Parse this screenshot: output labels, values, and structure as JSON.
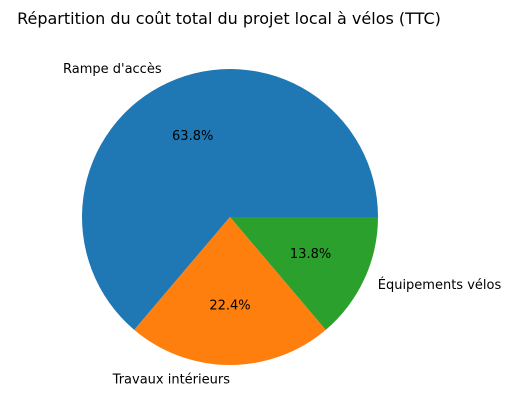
{
  "chart_data": {
    "type": "pie",
    "title": "Répartition du coût total du projet local à vélos (TTC)",
    "categories": [
      "Rampe d'accès",
      "Travaux intérieurs",
      "Équipements vélos"
    ],
    "values": [
      63.8,
      22.4,
      13.8
    ],
    "value_labels": [
      "63.8%",
      "22.4%",
      "13.8%"
    ],
    "colors": [
      "#1f77b4",
      "#ff7f0e",
      "#2ca02c"
    ],
    "start_angle": 0,
    "direction": "counterclockwise",
    "legend": "none"
  }
}
